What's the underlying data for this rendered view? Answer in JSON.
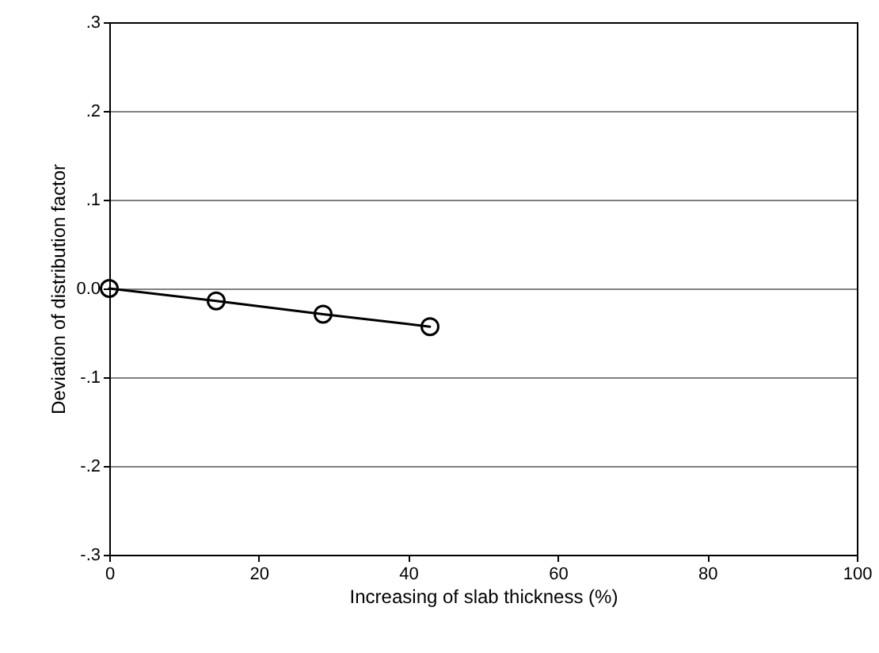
{
  "chart_data": {
    "type": "line",
    "xlabel": "Increasing of slab thickness (%)",
    "ylabel": "Deviation of distribution factor",
    "x": [
      0,
      14.3,
      28.6,
      42.9
    ],
    "series": [
      {
        "color": "#000000",
        "values": [
          0,
          -0.014,
          -0.029,
          -0.043
        ]
      }
    ],
    "xlim": [
      0,
      100
    ],
    "xticks": [
      0,
      20,
      40,
      60,
      80,
      100
    ],
    "ylim": [
      -0.3,
      0.3
    ],
    "yticks": [
      {
        "value": -0.3,
        "label": "-.3"
      },
      {
        "value": -0.2,
        "label": "-.2"
      },
      {
        "value": -0.1,
        "label": "-.1"
      },
      {
        "value": 0,
        "label": "0.0"
      },
      {
        "value": 0.1,
        "label": ".1"
      },
      {
        "value": 0.2,
        "label": ".2"
      },
      {
        "value": 0.3,
        "label": ".3"
      }
    ],
    "grid": "y",
    "marker": "circle",
    "line_style": "solid"
  }
}
